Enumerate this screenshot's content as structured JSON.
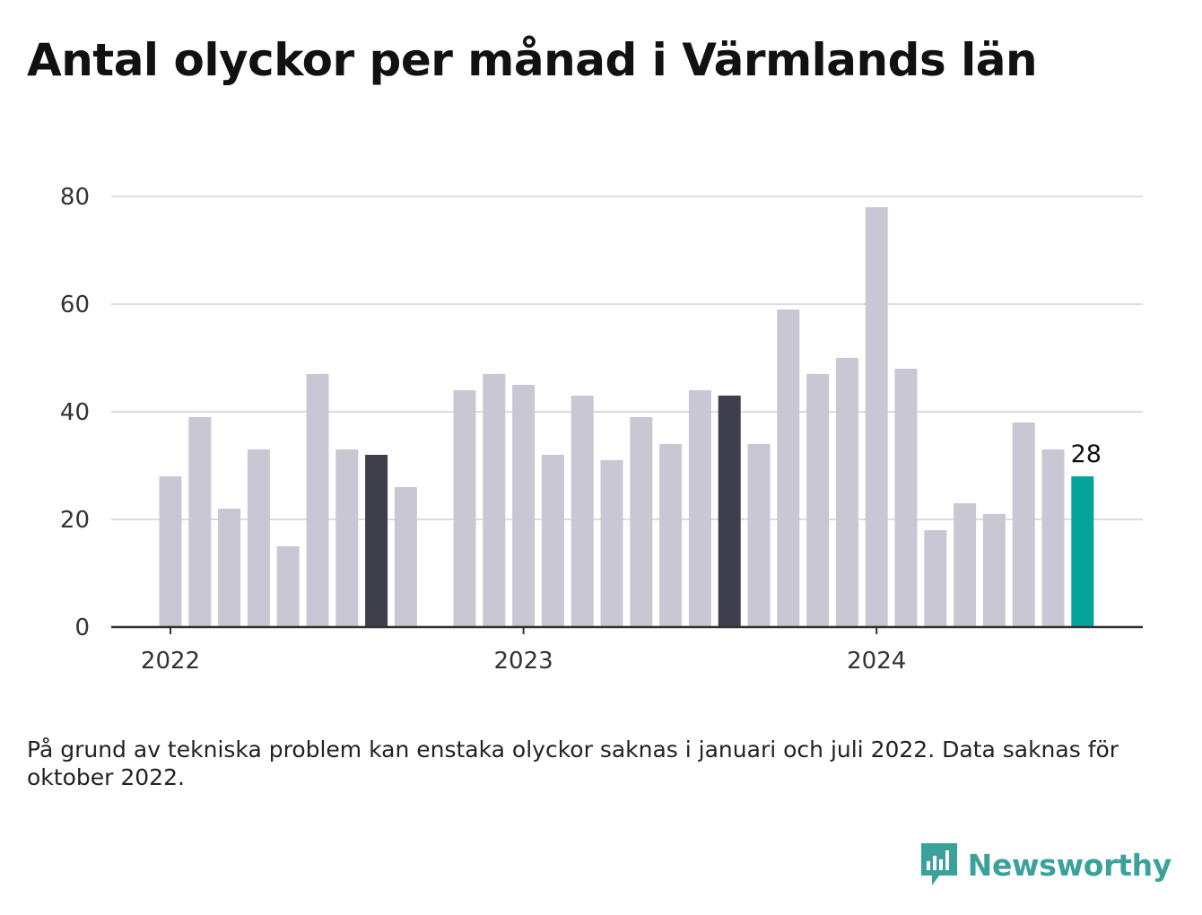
{
  "title": "Antal olyckor per månad i Värmlands län",
  "note": "På grund av tekniska problem kan enstaka olyckor saknas i januari och juli 2022. Data saknas för oktober 2022.",
  "brand": {
    "name": "Newsworthy",
    "icon": "newsworthy-chart-icon",
    "color": "#3aa29b"
  },
  "colors": {
    "bar": "#c9c7d3",
    "highlight": "#3f3e4d",
    "latest": "#03a49a",
    "grid": "#dddddd",
    "axis": "#333333"
  },
  "chart_data": {
    "type": "bar",
    "title": "Antal olyckor per månad i Värmlands län",
    "xlabel": "",
    "ylabel": "",
    "ylim": [
      0,
      80
    ],
    "yticks": [
      0,
      20,
      40,
      60,
      80
    ],
    "x_tick_labels": [
      {
        "month": "2022-01",
        "label": "2022"
      },
      {
        "month": "2023-01",
        "label": "2023"
      },
      {
        "month": "2024-01",
        "label": "2024"
      }
    ],
    "grid": true,
    "categories": [
      "2022-01",
      "2022-02",
      "2022-03",
      "2022-04",
      "2022-05",
      "2022-06",
      "2022-07",
      "2022-08",
      "2022-09",
      "2022-10",
      "2022-11",
      "2022-12",
      "2023-01",
      "2023-02",
      "2023-03",
      "2023-04",
      "2023-05",
      "2023-06",
      "2023-07",
      "2023-08",
      "2023-09",
      "2023-10",
      "2023-11",
      "2023-12",
      "2024-01",
      "2024-02",
      "2024-03",
      "2024-04",
      "2024-05",
      "2024-06",
      "2024-07",
      "2024-08"
    ],
    "values": [
      28,
      39,
      22,
      33,
      15,
      47,
      33,
      32,
      26,
      null,
      44,
      47,
      45,
      32,
      43,
      31,
      39,
      34,
      44,
      43,
      34,
      59,
      47,
      50,
      78,
      48,
      18,
      23,
      21,
      38,
      33,
      28
    ],
    "highlighted": [
      "2022-08",
      "2023-08"
    ],
    "latest": "2024-08",
    "data_labels": [
      {
        "month": "2024-08",
        "text": "28"
      }
    ]
  }
}
